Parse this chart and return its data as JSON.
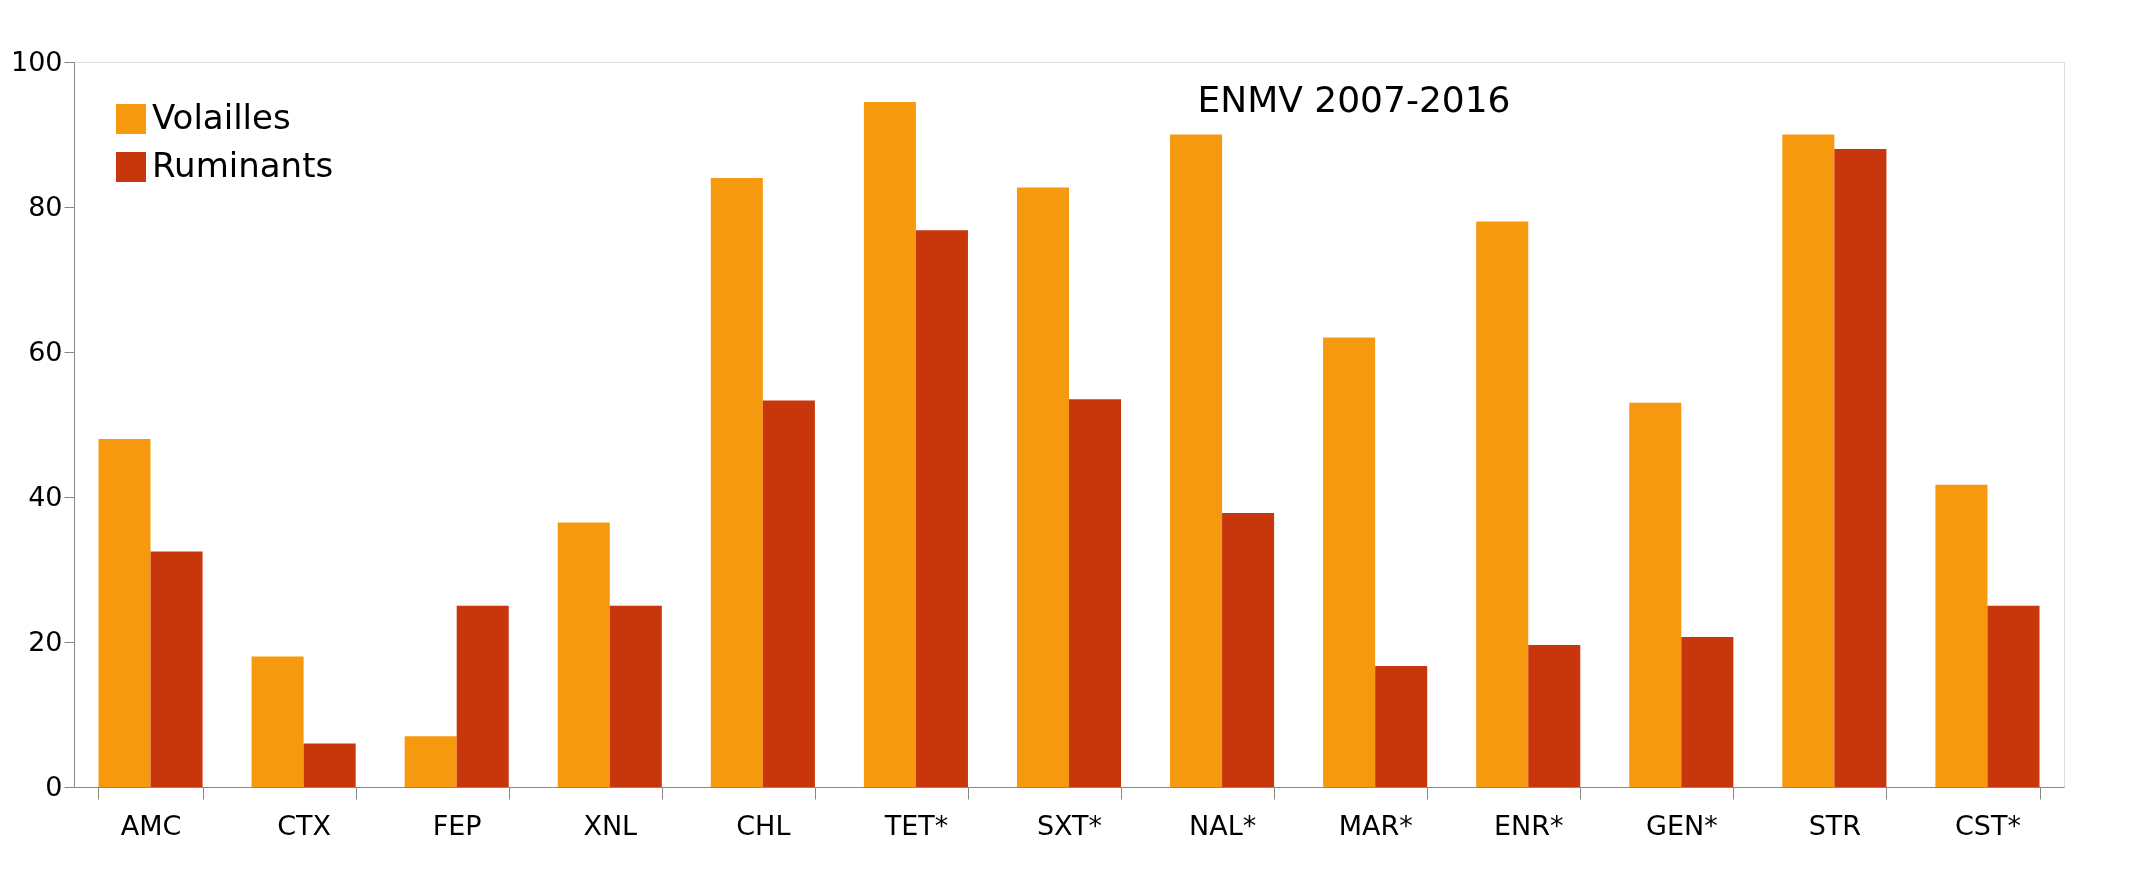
{
  "chart_data": {
    "type": "bar",
    "title": "ENMV 2007-2016",
    "categories": [
      "AMC",
      "CTX",
      "FEP",
      "XNL",
      "CHL",
      "TET*",
      "SXT*",
      "NAL*",
      "MAR*",
      "ENR*",
      "GEN*",
      "STR",
      "CST*"
    ],
    "series": [
      {
        "name": "Volailles",
        "color": "#f7990f",
        "values": [
          48,
          18,
          7,
          36.5,
          84,
          94.5,
          82.7,
          90,
          62,
          78,
          53,
          90,
          41.7
        ]
      },
      {
        "name": "Ruminants",
        "color": "#c8360b",
        "values": [
          32.5,
          6,
          25,
          25,
          53.3,
          76.8,
          53.5,
          37.8,
          16.7,
          19.6,
          20.7,
          88,
          25
        ]
      }
    ],
    "ylim": [
      0,
      100
    ],
    "yticks": [
      0,
      20,
      40,
      60,
      80,
      100
    ],
    "grid": false,
    "legend": "top left"
  }
}
